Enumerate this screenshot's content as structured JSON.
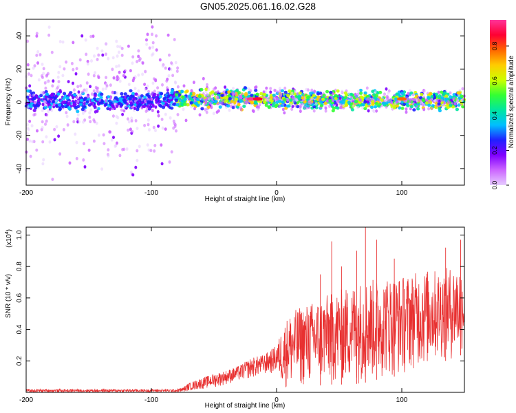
{
  "title": "GN05.2025.061.16.02.G28",
  "chart_data": [
    {
      "type": "scatter",
      "subtype": "spectrogram",
      "xlabel": "Height of straight line (km)",
      "ylabel": "Frequency (Hz)",
      "xlim": [
        -200,
        150
      ],
      "ylim": [
        -50,
        50
      ],
      "xticks": [
        -200,
        -100,
        0,
        100
      ],
      "xtick_labels": [
        "-200",
        "-100",
        "0",
        "100"
      ],
      "yticks": [
        -40,
        -20,
        0,
        20,
        40
      ],
      "ytick_labels": [
        "-40",
        "-20",
        "0",
        "20",
        "40"
      ],
      "colorbar": {
        "label": "Normalized spectral amplitude",
        "range": [
          0,
          0.95
        ],
        "ticks": [
          0.0,
          0.2,
          0.4,
          0.6,
          0.8
        ],
        "tick_labels": [
          "0.0",
          "0.2",
          "0.4",
          "0.6",
          "0.8"
        ],
        "colormap": [
          "#e6ccff",
          "#cc66ff",
          "#8000ff",
          "#2020ff",
          "#00bfff",
          "#00e6a0",
          "#33ff33",
          "#ccff00",
          "#ffcc00",
          "#ff6600",
          "#ff0033",
          "#ff3399"
        ]
      },
      "band": {
        "center_frequency_hz": [
          {
            "x": -200,
            "y": 1
          },
          {
            "x": -150,
            "y": 0
          },
          {
            "x": -100,
            "y": 1
          },
          {
            "x": -80,
            "y": 2
          },
          {
            "x": -40,
            "y": 2
          },
          {
            "x": -20,
            "y": 2
          },
          {
            "x": 0,
            "y": 2
          },
          {
            "x": 50,
            "y": 1
          },
          {
            "x": 100,
            "y": 1
          },
          {
            "x": 150,
            "y": 1
          }
        ],
        "scatter_extent_hz": [
          {
            "x": -200,
            "y": 48
          },
          {
            "x": -80,
            "y": 48
          },
          {
            "x": -78,
            "y": 15
          },
          {
            "x": -40,
            "y": 10
          },
          {
            "x": 0,
            "y": 10
          },
          {
            "x": 150,
            "y": 8
          }
        ]
      },
      "peaks": [
        {
          "x": -20,
          "y": 2,
          "amplitude": 0.95
        },
        {
          "x": -15,
          "y": 2,
          "amplitude": 0.9
        },
        {
          "x": 100,
          "y": 2,
          "amplitude": 0.8
        }
      ]
    },
    {
      "type": "line",
      "xlabel": "Height of straight line (km)",
      "ylabel": "SNR (10 * v/v)",
      "yscale_label": "(x10",
      "yscale_exponent": "4",
      "yscale_suffix": ")",
      "xlim": [
        -200,
        150
      ],
      "ylim": [
        0,
        1.05
      ],
      "xticks": [
        -200,
        -100,
        0,
        100
      ],
      "xtick_labels": [
        "-200",
        "-100",
        "0",
        "100"
      ],
      "yticks": [
        0.2,
        0.4,
        0.6,
        0.8,
        1.0
      ],
      "ytick_labels": [
        "0.2",
        "0.4",
        "0.6",
        "0.8",
        "1.0"
      ],
      "color": "#e83030",
      "envelope": {
        "x": [
          -200,
          -150,
          -100,
          -80,
          -75,
          -70,
          -60,
          -50,
          -40,
          -30,
          -20,
          -10,
          0,
          5,
          10,
          20,
          30,
          40,
          50,
          60,
          70,
          80,
          90,
          100,
          110,
          120,
          130,
          140,
          150
        ],
        "lower": [
          0.0,
          0.0,
          0.0,
          0.0,
          0.0,
          0.01,
          0.02,
          0.03,
          0.05,
          0.07,
          0.09,
          0.11,
          0.12,
          0.03,
          0.02,
          0.03,
          0.04,
          0.05,
          0.05,
          0.05,
          0.06,
          0.08,
          0.1,
          0.1,
          0.15,
          0.15,
          0.2,
          0.2,
          0.25
        ],
        "upper": [
          0.02,
          0.02,
          0.02,
          0.02,
          0.03,
          0.06,
          0.09,
          0.12,
          0.14,
          0.17,
          0.22,
          0.24,
          0.3,
          0.42,
          0.5,
          0.55,
          0.58,
          0.62,
          0.65,
          0.68,
          0.72,
          0.72,
          0.74,
          0.74,
          0.76,
          0.78,
          0.78,
          0.8,
          0.82
        ]
      },
      "spikes": [
        {
          "x": 35,
          "y": 0.75
        },
        {
          "x": 44,
          "y": 0.96
        },
        {
          "x": 52,
          "y": 0.8
        },
        {
          "x": 64,
          "y": 0.9
        },
        {
          "x": 71,
          "y": 1.05
        },
        {
          "x": 80,
          "y": 0.97
        },
        {
          "x": 94,
          "y": 0.85
        },
        {
          "x": 135,
          "y": 0.92
        },
        {
          "x": 147,
          "y": 0.97
        }
      ]
    }
  ]
}
